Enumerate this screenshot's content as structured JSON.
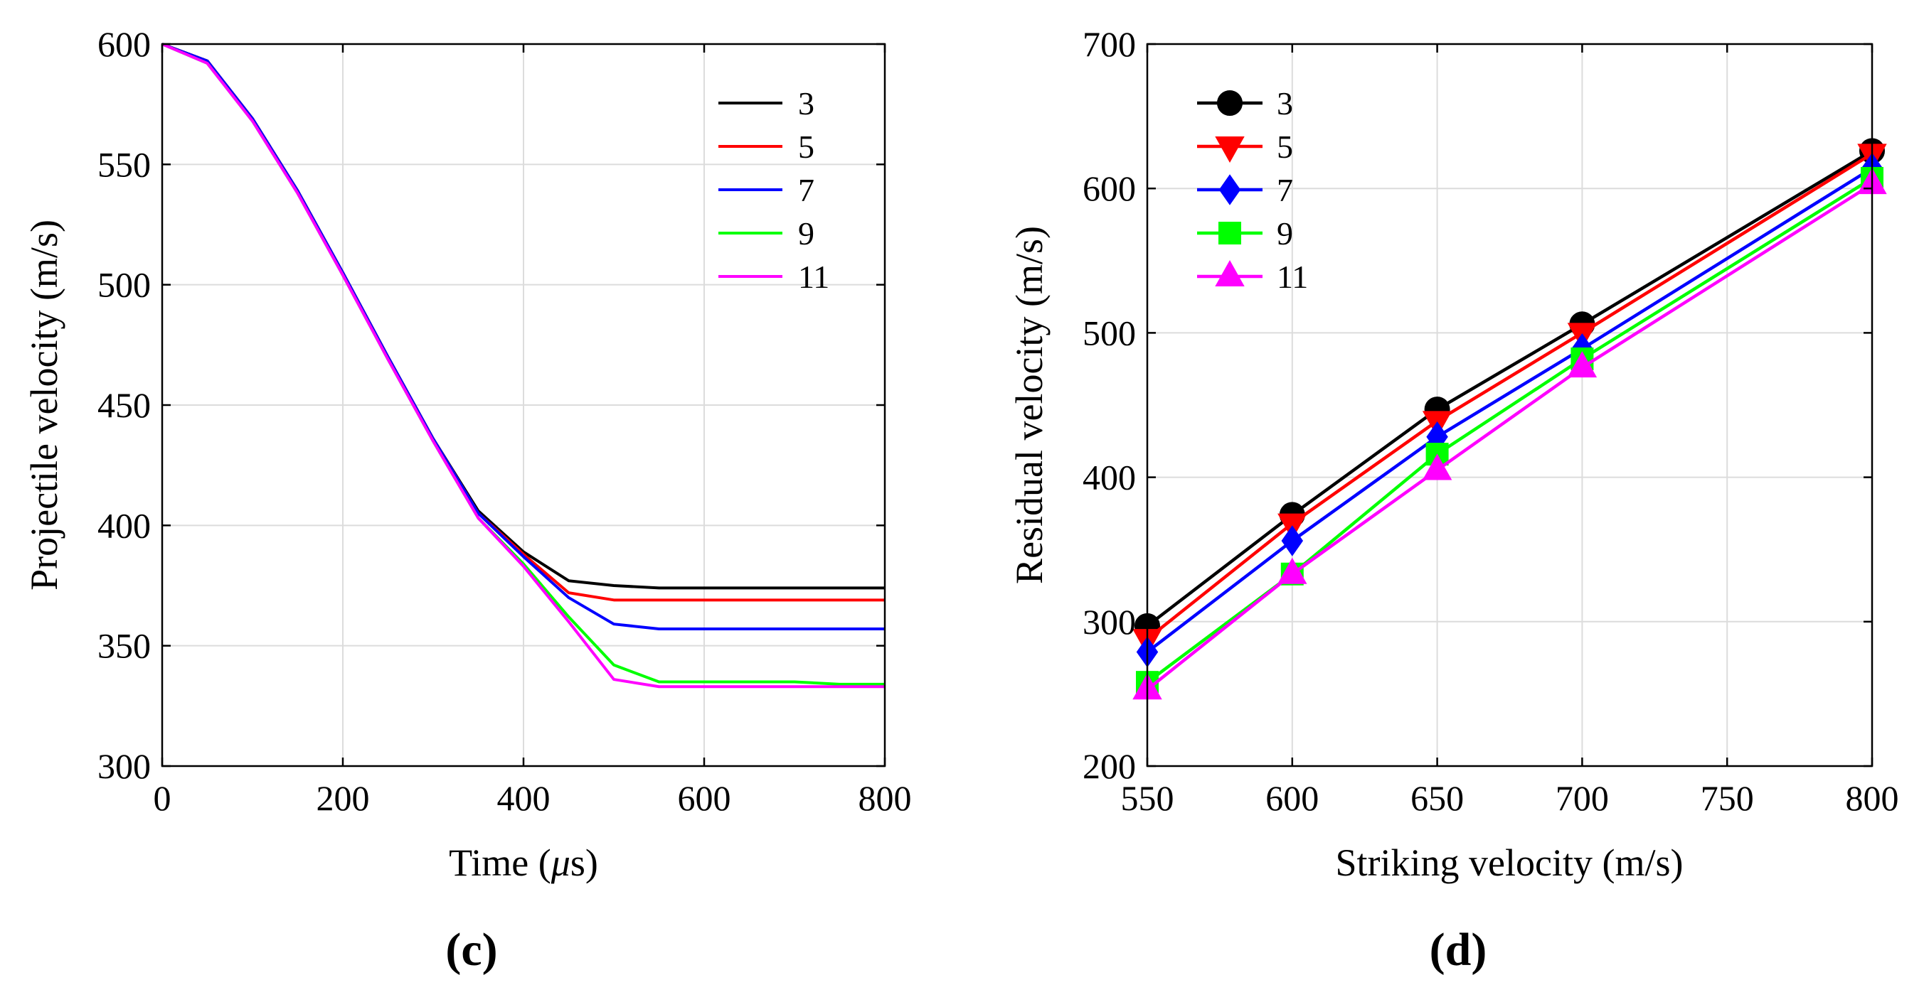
{
  "chart_data": [
    {
      "type": "line",
      "panel_label": "(c)",
      "xlabel_main": "Time (",
      "xlabel_mu": "μ",
      "xlabel_tail": "s)",
      "ylabel": "Projectile velocity (m/s)",
      "xlim": [
        0,
        800
      ],
      "ylim": [
        300,
        600
      ],
      "xticks": [
        0,
        200,
        400,
        600,
        800
      ],
      "yticks": [
        300,
        350,
        400,
        450,
        500,
        550,
        600
      ],
      "grid": true,
      "legend_position": "top-right",
      "series": [
        {
          "name": "3",
          "color": "#000000",
          "x": [
            0,
            50,
            100,
            150,
            200,
            250,
            300,
            350,
            400,
            450,
            500,
            550,
            600,
            650,
            700,
            750,
            800
          ],
          "y": [
            600,
            593,
            569,
            539,
            505,
            470,
            436,
            406,
            389,
            377,
            375,
            374,
            374,
            374,
            374,
            374,
            374
          ]
        },
        {
          "name": "5",
          "color": "#ff0000",
          "x": [
            0,
            50,
            100,
            150,
            200,
            250,
            300,
            350,
            400,
            450,
            500,
            550,
            600,
            650,
            700,
            750,
            800
          ],
          "y": [
            600,
            593,
            569,
            539,
            505,
            470,
            436,
            405,
            388,
            372,
            369,
            369,
            369,
            369,
            369,
            369,
            369
          ]
        },
        {
          "name": "7",
          "color": "#0000ff",
          "x": [
            0,
            50,
            100,
            150,
            200,
            250,
            300,
            350,
            400,
            450,
            500,
            550,
            600,
            650,
            700,
            750,
            800
          ],
          "y": [
            600,
            593,
            569,
            539,
            505,
            470,
            436,
            405,
            387,
            370,
            359,
            357,
            357,
            357,
            357,
            357,
            357
          ]
        },
        {
          "name": "9",
          "color": "#00ff00",
          "x": [
            0,
            50,
            100,
            150,
            200,
            250,
            300,
            350,
            400,
            450,
            500,
            550,
            600,
            650,
            700,
            750,
            800
          ],
          "y": [
            600,
            592,
            568,
            538,
            504,
            469,
            435,
            403,
            384,
            362,
            342,
            335,
            335,
            335,
            335,
            334,
            334
          ]
        },
        {
          "name": "11",
          "color": "#ff00ff",
          "x": [
            0,
            50,
            100,
            150,
            200,
            250,
            300,
            350,
            400,
            450,
            500,
            550,
            600,
            650,
            700,
            750,
            800
          ],
          "y": [
            600,
            592,
            568,
            538,
            504,
            469,
            435,
            403,
            383,
            360,
            336,
            333,
            333,
            333,
            333,
            333,
            333
          ]
        }
      ]
    },
    {
      "type": "line",
      "panel_label": "(d)",
      "xlabel": "Striking velocity (m/s)",
      "ylabel": "Residual velocity (m/s)",
      "xlim": [
        550,
        800
      ],
      "ylim": [
        200,
        700
      ],
      "xticks": [
        550,
        600,
        650,
        700,
        750,
        800
      ],
      "yticks": [
        200,
        300,
        400,
        500,
        600,
        700
      ],
      "grid": true,
      "legend_position": "top-left",
      "series": [
        {
          "name": "3",
          "color": "#000000",
          "marker": "circle",
          "x": [
            550,
            600,
            650,
            700,
            800
          ],
          "y": [
            297,
            374,
            447,
            506,
            626
          ]
        },
        {
          "name": "5",
          "color": "#ff0000",
          "marker": "triangle-down",
          "x": [
            550,
            600,
            650,
            700,
            800
          ],
          "y": [
            288,
            368,
            439,
            500,
            624
          ]
        },
        {
          "name": "7",
          "color": "#0000ff",
          "marker": "diamond",
          "x": [
            550,
            600,
            650,
            700,
            800
          ],
          "y": [
            279,
            356,
            428,
            489,
            614
          ]
        },
        {
          "name": "9",
          "color": "#00ff00",
          "marker": "square",
          "x": [
            550,
            600,
            650,
            700,
            800
          ],
          "y": [
            258,
            333,
            416,
            482,
            607
          ]
        },
        {
          "name": "11",
          "color": "#ff00ff",
          "marker": "triangle-up",
          "x": [
            550,
            600,
            650,
            700,
            800
          ],
          "y": [
            253,
            333,
            405,
            476,
            603
          ]
        }
      ]
    }
  ]
}
